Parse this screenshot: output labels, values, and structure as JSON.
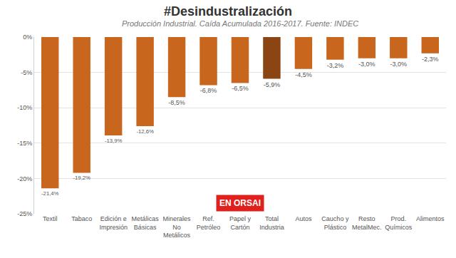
{
  "chart_data": {
    "type": "bar",
    "title": "#Desindustralización",
    "subtitle": "Producción Industrial. Caída Acumulada 2016-2017. Fuente: INDEC",
    "annotation": "EN ORSAI",
    "categories": [
      "Textil",
      "Tabaco",
      "Edición e Impresión",
      "Metálicas Básicas",
      "Minerales No Metálicos",
      "Ref. Petróleo",
      "Papel y Cartón",
      "Total Industria",
      "Autos",
      "Caucho y Plástico",
      "Resto MetalMec.",
      "Prod. Químicos",
      "Alimentos"
    ],
    "values": [
      -21.4,
      -19.2,
      -13.9,
      -12.6,
      -8.5,
      -6.8,
      -6.5,
      -5.9,
      -4.5,
      -3.2,
      -3.0,
      -3.0,
      -2.3
    ],
    "value_labels": [
      "-21,4%",
      "-19,2%",
      "-13,9%",
      "-12,6%",
      "-8,5%",
      "-6,8%",
      "-6,5%",
      "-5,9%",
      "-4,5%",
      "-3,2%",
      "-3,0%",
      "-3,0%",
      "-2,3%"
    ],
    "colors": [
      "#c8661e",
      "#c8661e",
      "#c8661e",
      "#c8661e",
      "#c8661e",
      "#c8661e",
      "#c8661e",
      "#8b4513",
      "#c8661e",
      "#c8661e",
      "#c8661e",
      "#c8661e",
      "#c8661e"
    ],
    "ylim": [
      -25,
      0
    ],
    "yticks": [
      {
        "value": -25,
        "label": "-25%"
      },
      {
        "value": -20,
        "label": "-20%"
      },
      {
        "value": -15,
        "label": "-15%"
      },
      {
        "value": -10,
        "label": "-10%"
      },
      {
        "value": -5,
        "label": "-5%"
      },
      {
        "value": 0,
        "label": "0%"
      }
    ],
    "grid": true,
    "data_labels": true
  }
}
